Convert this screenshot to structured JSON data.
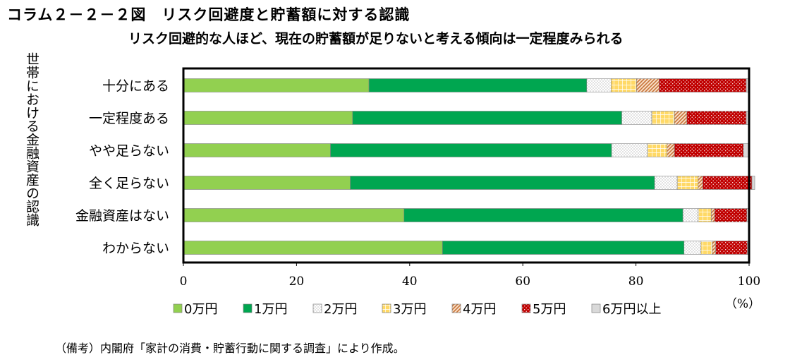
{
  "header": {
    "title": "コラム２－２－２図　リスク回避度と貯蓄額に対する認識",
    "subtitle": "リスク回避的な人ほど、現在の貯蓄額が足りないと考える傾向は一定程度みられる"
  },
  "ylabel": "世帯における金融資産の認識",
  "note": "（備考）内閣府「家計の消費・貯蓄行動に関する調査」により作成。",
  "chart_data": {
    "type": "bar",
    "orientation": "horizontal",
    "stacked": true,
    "categories": [
      "十分にある",
      "一定程度ある",
      "やや足らない",
      "全く足らない",
      "金融資産はない",
      "わからない"
    ],
    "series": [
      {
        "name": "0万円",
        "color": "#92d050",
        "pattern": "solid",
        "values": [
          32.8,
          29.9,
          26.0,
          29.5,
          39.0,
          45.8
        ]
      },
      {
        "name": "1万円",
        "color": "#00a650",
        "pattern": "solid",
        "values": [
          38.5,
          47.6,
          49.7,
          53.8,
          49.3,
          42.7
        ]
      },
      {
        "name": "2万円",
        "color": "#ffffff",
        "pattern": "dots",
        "values": [
          4.3,
          5.3,
          6.3,
          4.0,
          2.7,
          3.0
        ]
      },
      {
        "name": "3万円",
        "color": "#ffd966",
        "pattern": "grid",
        "values": [
          4.5,
          4.0,
          3.5,
          3.7,
          2.3,
          2.0
        ]
      },
      {
        "name": "4万円",
        "color": "#e5a468",
        "pattern": "diagonal",
        "values": [
          4.0,
          2.2,
          1.3,
          0.8,
          0.6,
          0.6
        ]
      },
      {
        "name": "5万円",
        "color": "#c00000",
        "pattern": "dots",
        "values": [
          15.4,
          10.5,
          12.2,
          8.7,
          5.7,
          5.6
        ]
      },
      {
        "name": "6万円以上",
        "color": "#d9d9d9",
        "pattern": "solid",
        "values": [
          0.5,
          0.5,
          1.0,
          0.5,
          0.4,
          0.3
        ]
      }
    ],
    "xlim": [
      0,
      100
    ],
    "xticks": [
      "0",
      "20",
      "40",
      "60",
      "80",
      "100"
    ],
    "xunit": "（%）",
    "legend": "bottom"
  }
}
